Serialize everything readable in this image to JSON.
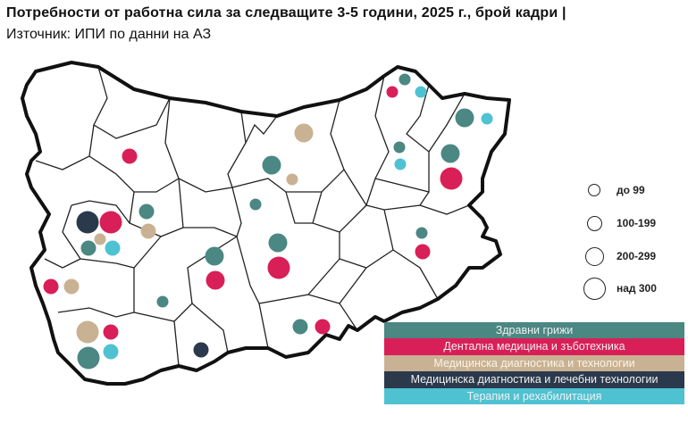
{
  "title": "Потребности от работна сила за следващите 3-5 години, 2025 г., брой кадри |",
  "source": "Източник: ИПИ по данни на АЗ",
  "size_legend": [
    {
      "label": "до 99"
    },
    {
      "label": "100-199"
    },
    {
      "label": "200-299"
    },
    {
      "label": "над 300"
    }
  ],
  "categories": [
    {
      "key": "health",
      "label": "Здравни грижи",
      "color": "#4b8783"
    },
    {
      "key": "dental",
      "label": "Дентална медицина и зъботехника",
      "color": "#d91f58"
    },
    {
      "key": "diag",
      "label": "Медицинска диагностика и технологии",
      "color": "#c9b293"
    },
    {
      "key": "treat",
      "label": "Медицинска диагностика и лечебни технологии",
      "color": "#2b394d"
    },
    {
      "key": "therapy",
      "label": "Терапия и рехабилитация",
      "color": "#4fc2d2"
    }
  ],
  "bubbles": [
    {
      "category": "health",
      "size_class": "до 99"
    },
    {
      "category": "dental",
      "size_class": "до 99"
    },
    {
      "category": "therapy",
      "size_class": "до 99"
    },
    {
      "category": "health",
      "size_class": "200-299"
    },
    {
      "category": "therapy",
      "size_class": "до 99"
    },
    {
      "category": "diag",
      "size_class": "200-299"
    },
    {
      "category": "dental",
      "size_class": "100-199"
    },
    {
      "category": "health",
      "size_class": "до 99"
    },
    {
      "category": "therapy",
      "size_class": "до 99"
    },
    {
      "category": "health",
      "size_class": "200-299"
    },
    {
      "category": "dental",
      "size_class": "над 300"
    },
    {
      "category": "health",
      "size_class": "200-299"
    },
    {
      "category": "diag",
      "size_class": "до 99"
    },
    {
      "category": "health",
      "size_class": "до 99"
    },
    {
      "category": "health",
      "size_class": "100-199"
    },
    {
      "category": "treat",
      "size_class": "над 300"
    },
    {
      "category": "dental",
      "size_class": "над 300"
    },
    {
      "category": "diag",
      "size_class": "100-199"
    },
    {
      "category": "diag",
      "size_class": "до 99"
    },
    {
      "category": "health",
      "size_class": "100-199"
    },
    {
      "category": "therapy",
      "size_class": "100-199"
    },
    {
      "category": "health",
      "size_class": "до 99"
    },
    {
      "category": "dental",
      "size_class": "100-199"
    },
    {
      "category": "health",
      "size_class": "200-299"
    },
    {
      "category": "dental",
      "size_class": "над 300"
    },
    {
      "category": "health",
      "size_class": "200-299"
    },
    {
      "category": "dental",
      "size_class": "200-299"
    },
    {
      "category": "dental",
      "size_class": "100-199"
    },
    {
      "category": "diag",
      "size_class": "100-199"
    },
    {
      "category": "health",
      "size_class": "до 99"
    },
    {
      "category": "health",
      "size_class": "100-199"
    },
    {
      "category": "dental",
      "size_class": "100-199"
    },
    {
      "category": "diag",
      "size_class": "над 300"
    },
    {
      "category": "dental",
      "size_class": "100-199"
    },
    {
      "category": "health",
      "size_class": "над 300"
    },
    {
      "category": "therapy",
      "size_class": "100-199"
    },
    {
      "category": "treat",
      "size_class": "100-199"
    }
  ]
}
